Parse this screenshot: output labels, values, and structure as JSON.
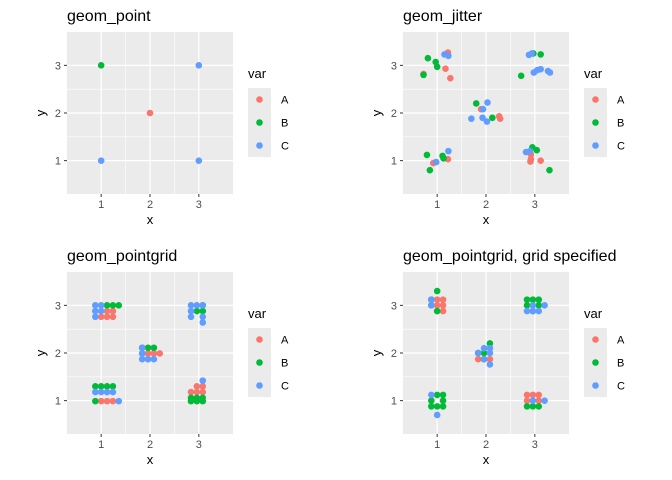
{
  "legend": {
    "title": "var",
    "entries": [
      {
        "label": "A",
        "color": "#F8766D"
      },
      {
        "label": "B",
        "color": "#00BA38"
      },
      {
        "label": "C",
        "color": "#619CFF"
      }
    ]
  },
  "chart_data": [
    {
      "type": "scatter",
      "title": "geom_point",
      "xlabel": "x",
      "ylabel": "y",
      "xlim": [
        0.3,
        3.7
      ],
      "ylim": [
        0.3,
        3.7
      ],
      "xticks": [
        1,
        2,
        3
      ],
      "yticks": [
        1,
        2,
        3
      ],
      "grid": true,
      "legend_position": "right",
      "series": [
        {
          "name": "A",
          "x": [
            2
          ],
          "y": [
            2
          ]
        },
        {
          "name": "B",
          "x": [
            1
          ],
          "y": [
            3
          ]
        },
        {
          "name": "C",
          "x": [
            1,
            3,
            3
          ],
          "y": [
            1,
            3,
            1
          ]
        }
      ]
    },
    {
      "type": "scatter",
      "title": "geom_jitter",
      "xlabel": "x",
      "ylabel": "y",
      "xlim": [
        0.3,
        3.7
      ],
      "ylim": [
        0.3,
        3.7
      ],
      "xticks": [
        1,
        2,
        3
      ],
      "yticks": [
        1,
        2,
        3
      ],
      "grid": true,
      "legend_position": "right",
      "series": [
        {
          "name": "A",
          "x": [
            0.72,
            1.22,
            1.17,
            1.27,
            2.27,
            2.29,
            2.92,
            2.92,
            2.91,
            3.12,
            0.92,
            1.22,
            1.9
          ],
          "y": [
            2.82,
            3.27,
            2.93,
            2.73,
            1.93,
            1.88,
            1.03,
            1.13,
            0.98,
            1.0,
            0.95,
            1.03,
            2.08
          ]
        },
        {
          "name": "B",
          "x": [
            0.72,
            0.81,
            0.97,
            1.0,
            0.79,
            1.11,
            1.13,
            1.8,
            2.13,
            2.97,
            3.12,
            3.04,
            2.72,
            2.95,
            3.3,
            0.85
          ],
          "y": [
            2.8,
            3.15,
            3.07,
            2.97,
            1.12,
            1.1,
            1.05,
            2.2,
            1.9,
            3.25,
            3.23,
            1.22,
            2.78,
            1.28,
            0.8,
            0.8
          ]
        },
        {
          "name": "C",
          "x": [
            1.15,
            1.23,
            1.7,
            1.93,
            2.02,
            2.03,
            1.94,
            2.88,
            2.94,
            2.98,
            3.05,
            3.12,
            3.27,
            3.31,
            2.82,
            2.9,
            0.98,
            1.23
          ],
          "y": [
            3.23,
            3.2,
            1.88,
            1.9,
            1.82,
            2.22,
            2.08,
            3.22,
            3.25,
            2.85,
            2.9,
            2.92,
            2.88,
            2.85,
            1.18,
            1.2,
            0.97,
            1.2
          ]
        }
      ]
    },
    {
      "type": "scatter",
      "title": "geom_pointgrid",
      "xlabel": "x",
      "ylabel": "y",
      "xlim": [
        0.3,
        3.7
      ],
      "ylim": [
        0.3,
        3.7
      ],
      "xticks": [
        1,
        2,
        3
      ],
      "yticks": [
        1,
        2,
        3
      ],
      "grid": true,
      "legend_position": "right",
      "series": [
        {
          "name": "A",
          "x": [
            1.12,
            1.24,
            1.0,
            1.12,
            1.24,
            1.0,
            1.12,
            1.24,
            1.84,
            1.96,
            2.08,
            2.2,
            2.96,
            3.08,
            2.84,
            2.96,
            3.08
          ],
          "y": [
            2.88,
            2.88,
            2.76,
            2.76,
            2.76,
            0.99,
            0.99,
            0.99,
            1.99,
            1.99,
            1.99,
            1.99,
            1.3,
            1.3,
            1.18,
            1.18,
            1.18
          ]
        },
        {
          "name": "B",
          "x": [
            1.12,
            1.24,
            1.36,
            0.88,
            1.0,
            1.12,
            1.24,
            0.88,
            1.84,
            1.96,
            2.08,
            3.08,
            2.96,
            3.08,
            2.84,
            2.96,
            3.08,
            2.84,
            2.96,
            3.08
          ],
          "y": [
            3.0,
            3.0,
            3.0,
            1.3,
            1.3,
            1.3,
            1.3,
            0.99,
            2.11,
            2.11,
            2.11,
            3.0,
            2.88,
            2.88,
            1.06,
            1.06,
            1.06,
            0.99,
            0.99,
            0.99
          ],
          "note_removed": false
        },
        {
          "name": "C",
          "x": [
            0.88,
            1.0,
            0.88,
            1.0,
            0.88,
            0.88,
            1.0,
            1.12,
            1.24,
            1.36,
            1.84,
            1.84,
            1.96,
            2.08,
            1.84,
            1.96,
            2.84,
            2.96,
            3.08,
            2.84,
            2.84,
            3.08,
            3.08,
            3.08
          ],
          "y": [
            3.0,
            3.0,
            2.88,
            2.88,
            2.76,
            1.18,
            1.18,
            1.18,
            1.18,
            0.99,
            2.11,
            1.99,
            1.87,
            1.87,
            1.87,
            1.87,
            3.0,
            3.0,
            3.0,
            2.88,
            2.76,
            2.76,
            2.64,
            1.42
          ]
        }
      ]
    },
    {
      "type": "scatter",
      "title": "geom_pointgrid, grid specified",
      "xlabel": "x",
      "ylabel": "y",
      "xlim": [
        0.3,
        3.7
      ],
      "ylim": [
        0.3,
        3.7
      ],
      "xticks": [
        1,
        2,
        3
      ],
      "yticks": [
        1,
        2,
        3
      ],
      "grid": true,
      "legend_position": "right",
      "series": [
        {
          "name": "A",
          "x": [
            1.0,
            1.12,
            1.0,
            1.12,
            1.0,
            1.12,
            1.84,
            2.08,
            2.84,
            2.96,
            3.08,
            2.84,
            3.08
          ],
          "y": [
            3.12,
            3.12,
            3.0,
            3.0,
            2.88,
            2.88,
            1.87,
            1.87,
            1.12,
            1.12,
            1.12,
            1.0,
            1.0
          ]
        },
        {
          "name": "B",
          "x": [
            1.0,
            0.88,
            0.88,
            1.0,
            1.0,
            1.12,
            0.88,
            1.12,
            0.88,
            1.0,
            1.12,
            2.08,
            1.96,
            1.84,
            1.96,
            2.84,
            2.96,
            3.08,
            2.84,
            3.08,
            2.96,
            2.84,
            2.96,
            3.08
          ],
          "y": [
            3.3,
            3.12,
            3.0,
            2.88,
            1.12,
            1.12,
            1.0,
            1.0,
            0.88,
            0.88,
            0.88,
            2.2,
            2.0,
            2.0,
            1.87,
            3.12,
            3.12,
            3.12,
            3.0,
            3.0,
            2.88,
            0.88,
            0.88,
            0.88
          ]
        },
        {
          "name": "C",
          "x": [
            0.88,
            0.88,
            0.88,
            1.0,
            1.84,
            1.96,
            2.08,
            2.08,
            1.96,
            2.08,
            2.96,
            2.84,
            2.96,
            3.08,
            3.2,
            2.96,
            3.2
          ],
          "y": [
            3.12,
            3.0,
            1.12,
            0.7,
            2.0,
            2.1,
            2.1,
            2.0,
            1.87,
            1.76,
            3.0,
            2.88,
            2.88,
            2.88,
            3.0,
            1.0,
            1.0
          ]
        }
      ]
    }
  ]
}
